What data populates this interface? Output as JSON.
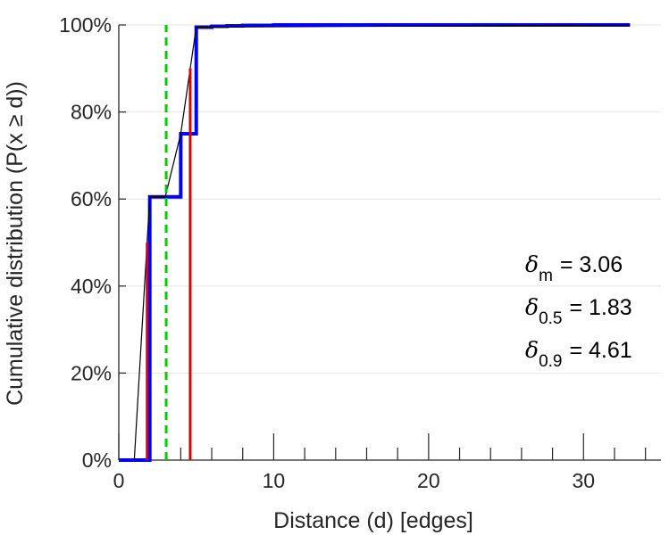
{
  "chart_data": {
    "type": "line",
    "title": "",
    "xlabel": "Distance (d) [edges]",
    "ylabel": "Cumulative distribution (P(x ≥ d))",
    "xlim": [
      0,
      35
    ],
    "ylim": [
      0,
      1
    ],
    "x_ticks": [
      0,
      10,
      20,
      30
    ],
    "y_ticks": [
      0,
      0.2,
      0.4,
      0.6,
      0.8,
      1.0
    ],
    "y_tick_labels": [
      "0%",
      "20%",
      "40%",
      "60%",
      "80%",
      "100%"
    ],
    "grid": "horizontal",
    "colors": {
      "step": "#0000ff",
      "line": "#000000",
      "markers": "#e00000",
      "mean": "#00cc00",
      "grid": "#e4e4e4",
      "axis": "#262626"
    },
    "series": [
      {
        "kind": "step",
        "x": [
          0,
          1,
          2,
          3,
          4,
          5,
          6,
          7,
          8,
          9,
          10,
          12,
          14,
          16,
          18,
          20,
          22,
          24,
          26,
          28,
          30,
          32,
          33
        ],
        "y": [
          0,
          0,
          0.605,
          0.605,
          0.75,
          0.995,
          0.997,
          0.998,
          0.999,
          0.999,
          1.0,
          1.0,
          1.0,
          1.0,
          1.0,
          1.0,
          1.0,
          1.0,
          1.0,
          1.0,
          1.0,
          1.0,
          1.0
        ]
      },
      {
        "kind": "line",
        "x": [
          1,
          2,
          3,
          4,
          5,
          33
        ],
        "y": [
          0,
          0.605,
          0.605,
          0.75,
          0.995,
          1.0
        ]
      }
    ],
    "vertical_markers": [
      {
        "x": 1.83,
        "y_top": 0.5,
        "style": "solid"
      },
      {
        "x": 4.61,
        "y_top": 0.9,
        "style": "solid"
      },
      {
        "x": 3.06,
        "y_top": 1.0,
        "style": "dashed"
      }
    ],
    "annotations": [
      {
        "symbol": "δ",
        "sub": "m",
        "value": "= 3.06"
      },
      {
        "symbol": "δ",
        "sub": "0.5",
        "value": "= 1.83"
      },
      {
        "symbol": "δ",
        "sub": "0.9",
        "value": "= 4.61"
      }
    ]
  }
}
